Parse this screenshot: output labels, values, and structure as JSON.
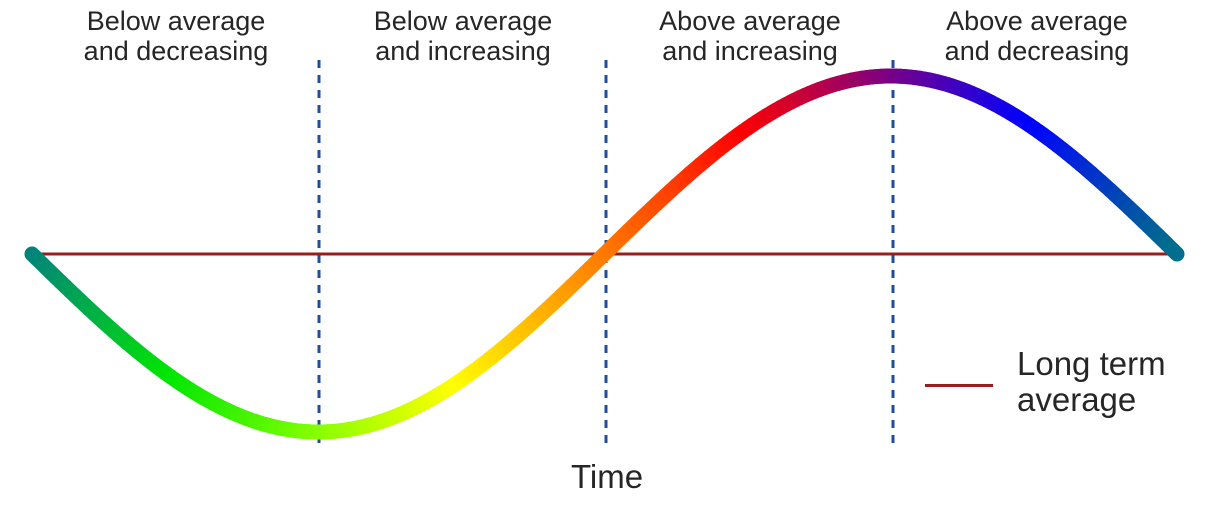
{
  "phases": [
    {
      "line1": "Below average",
      "line2": "and decreasing"
    },
    {
      "line1": "Below average",
      "line2": "and increasing"
    },
    {
      "line1": "Above average",
      "line2": "and increasing"
    },
    {
      "line1": "Above average",
      "line2": "and decreasing"
    }
  ],
  "x_axis_label": "Time",
  "legend": {
    "line1": "Long term",
    "line2": "average"
  },
  "colors": {
    "average_line": "#9b1c1c",
    "divider": "#1f4e9c",
    "curve_gradient": [
      "#008080",
      "#00e600",
      "#80ff00",
      "#ffff00",
      "#ff8000",
      "#ff0000",
      "#800080",
      "#0000ff",
      "#006e8c"
    ]
  },
  "chart_data": {
    "type": "line",
    "description_series": "sine wave (one full period) colored by phase",
    "x_range": [
      0,
      1
    ],
    "y_range": [
      -1,
      1
    ],
    "phase_boundaries": [
      0.25,
      0.5,
      0.75
    ],
    "average": 0
  }
}
